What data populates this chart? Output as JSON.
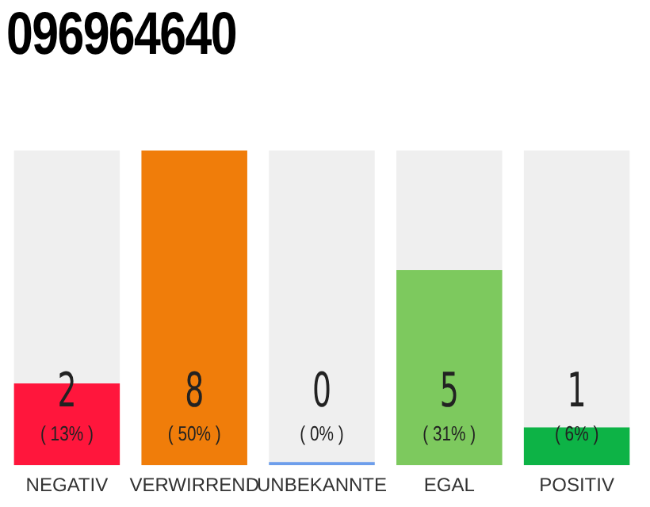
{
  "chart_data": {
    "type": "bar",
    "title": "096964640",
    "categories": [
      "NEGATIV",
      "VERWIRREND",
      "UNBEKANNTE",
      "EGAL",
      "POSITIV"
    ],
    "values": [
      13,
      50,
      0,
      31,
      6
    ],
    "colors": [
      "#ff163c",
      "#f07d0a",
      "#6d9eeb",
      "#7dc95e",
      "#0db346"
    ],
    "value_labels": [
      "( 13% )",
      "( 50% )",
      "( 0% )",
      "( 31% )",
      "( 6% )"
    ],
    "annotations": [
      "2",
      "8",
      "0",
      "5",
      "1"
    ],
    "tick_labels": "x",
    "grid": false,
    "legend": false
  }
}
